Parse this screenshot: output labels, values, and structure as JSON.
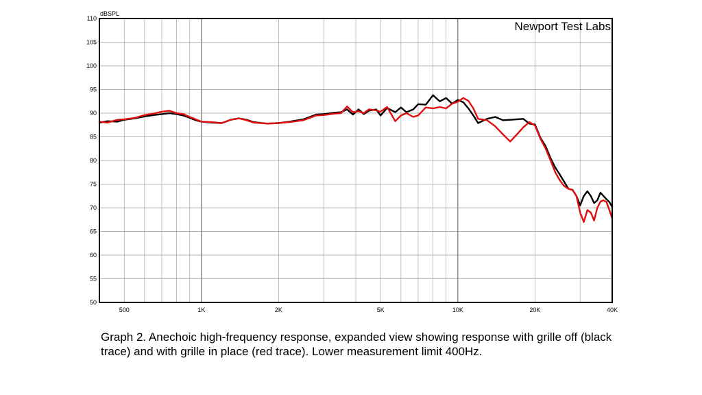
{
  "chart_data": {
    "type": "line",
    "title": "Newport Test Labs",
    "ylabel": "dBSPL",
    "xlabel": "",
    "xscale": "log",
    "xlim": [
      400,
      40000
    ],
    "ylim": [
      50,
      110
    ],
    "grid": true,
    "x_ticks": [
      {
        "value": 500,
        "label": "500"
      },
      {
        "value": 1000,
        "label": "1K"
      },
      {
        "value": 2000,
        "label": "2K"
      },
      {
        "value": 5000,
        "label": "5K"
      },
      {
        "value": 10000,
        "label": "10K"
      },
      {
        "value": 20000,
        "label": "20K"
      },
      {
        "value": 40000,
        "label": "40K"
      }
    ],
    "y_ticks": [
      {
        "value": 50,
        "label": "50"
      },
      {
        "value": 55,
        "label": "55"
      },
      {
        "value": 60,
        "label": "60"
      },
      {
        "value": 65,
        "label": "65"
      },
      {
        "value": 70,
        "label": "70"
      },
      {
        "value": 75,
        "label": "75"
      },
      {
        "value": 80,
        "label": "80"
      },
      {
        "value": 85,
        "label": "85"
      },
      {
        "value": 90,
        "label": "90"
      },
      {
        "value": 95,
        "label": "95"
      },
      {
        "value": 100,
        "label": "100"
      },
      {
        "value": 105,
        "label": "105"
      },
      {
        "value": 110,
        "label": "110"
      }
    ],
    "series": [
      {
        "color": "#000000",
        "points": [
          [
            400,
            88.0
          ],
          [
            430,
            88.3
          ],
          [
            470,
            88.2
          ],
          [
            500,
            88.6
          ],
          [
            550,
            88.9
          ],
          [
            600,
            89.3
          ],
          [
            650,
            89.6
          ],
          [
            700,
            89.8
          ],
          [
            750,
            90.0
          ],
          [
            800,
            89.8
          ],
          [
            850,
            89.5
          ],
          [
            900,
            89.0
          ],
          [
            950,
            88.5
          ],
          [
            1000,
            88.2
          ],
          [
            1100,
            88.0
          ],
          [
            1200,
            87.9
          ],
          [
            1300,
            88.6
          ],
          [
            1400,
            88.9
          ],
          [
            1500,
            88.6
          ],
          [
            1600,
            88.1
          ],
          [
            1800,
            87.8
          ],
          [
            2000,
            87.9
          ],
          [
            2200,
            88.2
          ],
          [
            2500,
            88.7
          ],
          [
            2800,
            89.7
          ],
          [
            3000,
            89.8
          ],
          [
            3300,
            90.1
          ],
          [
            3500,
            90.2
          ],
          [
            3700,
            90.8
          ],
          [
            3900,
            89.7
          ],
          [
            4100,
            90.8
          ],
          [
            4300,
            89.8
          ],
          [
            4500,
            90.5
          ],
          [
            4800,
            90.8
          ],
          [
            5000,
            89.5
          ],
          [
            5300,
            91.1
          ],
          [
            5700,
            90.2
          ],
          [
            6000,
            91.2
          ],
          [
            6300,
            90.2
          ],
          [
            6700,
            90.8
          ],
          [
            7000,
            91.9
          ],
          [
            7500,
            91.8
          ],
          [
            8000,
            93.8
          ],
          [
            8500,
            92.5
          ],
          [
            9000,
            93.2
          ],
          [
            9500,
            92.0
          ],
          [
            10000,
            92.8
          ],
          [
            10500,
            92.3
          ],
          [
            11000,
            91.0
          ],
          [
            11500,
            89.5
          ],
          [
            12000,
            87.9
          ],
          [
            13000,
            88.8
          ],
          [
            14000,
            89.2
          ],
          [
            15000,
            88.5
          ],
          [
            16000,
            88.6
          ],
          [
            17000,
            88.7
          ],
          [
            18000,
            88.8
          ],
          [
            19000,
            87.8
          ],
          [
            20000,
            87.6
          ],
          [
            21000,
            84.8
          ],
          [
            22000,
            83.0
          ],
          [
            23000,
            80.5
          ],
          [
            24000,
            78.5
          ],
          [
            25000,
            77.0
          ],
          [
            26000,
            75.5
          ],
          [
            27000,
            74.0
          ],
          [
            28000,
            73.8
          ],
          [
            29000,
            72.5
          ],
          [
            30000,
            70.5
          ],
          [
            31000,
            72.5
          ],
          [
            32000,
            73.5
          ],
          [
            33000,
            72.5
          ],
          [
            34000,
            71.0
          ],
          [
            35000,
            71.6
          ],
          [
            36000,
            73.2
          ],
          [
            37000,
            72.5
          ],
          [
            38000,
            71.8
          ],
          [
            39000,
            71.2
          ],
          [
            40000,
            70.2
          ]
        ]
      },
      {
        "color": "#e01010",
        "points": [
          [
            400,
            88.2
          ],
          [
            430,
            88.0
          ],
          [
            470,
            88.6
          ],
          [
            500,
            88.7
          ],
          [
            550,
            89.0
          ],
          [
            600,
            89.6
          ],
          [
            650,
            89.9
          ],
          [
            700,
            90.3
          ],
          [
            750,
            90.5
          ],
          [
            800,
            90.0
          ],
          [
            850,
            89.8
          ],
          [
            900,
            89.2
          ],
          [
            950,
            88.7
          ],
          [
            1000,
            88.2
          ],
          [
            1100,
            88.1
          ],
          [
            1200,
            87.9
          ],
          [
            1300,
            88.6
          ],
          [
            1400,
            88.9
          ],
          [
            1500,
            88.5
          ],
          [
            1600,
            88.0
          ],
          [
            1800,
            87.8
          ],
          [
            2000,
            87.9
          ],
          [
            2200,
            88.1
          ],
          [
            2500,
            88.5
          ],
          [
            2800,
            89.5
          ],
          [
            3000,
            89.6
          ],
          [
            3300,
            89.9
          ],
          [
            3500,
            90.0
          ],
          [
            3700,
            91.4
          ],
          [
            3900,
            90.2
          ],
          [
            4100,
            90.4
          ],
          [
            4300,
            90.0
          ],
          [
            4500,
            90.8
          ],
          [
            4800,
            90.6
          ],
          [
            5000,
            90.3
          ],
          [
            5300,
            91.3
          ],
          [
            5700,
            88.3
          ],
          [
            6000,
            89.5
          ],
          [
            6300,
            90.0
          ],
          [
            6700,
            89.2
          ],
          [
            7000,
            89.5
          ],
          [
            7500,
            91.2
          ],
          [
            8000,
            91.0
          ],
          [
            8500,
            91.3
          ],
          [
            9000,
            91.0
          ],
          [
            9500,
            92.0
          ],
          [
            10000,
            92.4
          ],
          [
            10500,
            93.2
          ],
          [
            11000,
            92.6
          ],
          [
            11500,
            91.0
          ],
          [
            12000,
            88.8
          ],
          [
            13000,
            88.5
          ],
          [
            14000,
            87.2
          ],
          [
            15000,
            85.5
          ],
          [
            16000,
            84.0
          ],
          [
            17000,
            85.5
          ],
          [
            18000,
            87.0
          ],
          [
            19000,
            88.1
          ],
          [
            20000,
            87.4
          ],
          [
            21000,
            84.6
          ],
          [
            22000,
            82.5
          ],
          [
            23000,
            80.0
          ],
          [
            24000,
            77.5
          ],
          [
            25000,
            75.8
          ],
          [
            26000,
            74.6
          ],
          [
            27000,
            74.0
          ],
          [
            28000,
            73.8
          ],
          [
            29000,
            72.5
          ],
          [
            30000,
            69.0
          ],
          [
            31000,
            67.0
          ],
          [
            32000,
            69.5
          ],
          [
            33000,
            69.0
          ],
          [
            34000,
            67.3
          ],
          [
            35000,
            70.0
          ],
          [
            36000,
            71.3
          ],
          [
            37000,
            71.6
          ],
          [
            38000,
            71.2
          ],
          [
            39000,
            69.5
          ],
          [
            40000,
            67.8
          ]
        ]
      }
    ]
  },
  "caption": "Graph 2. Anechoic high-frequency response, expanded view showing response with grille off (black trace) and with grille in place (red trace). Lower measurement limit 400Hz."
}
